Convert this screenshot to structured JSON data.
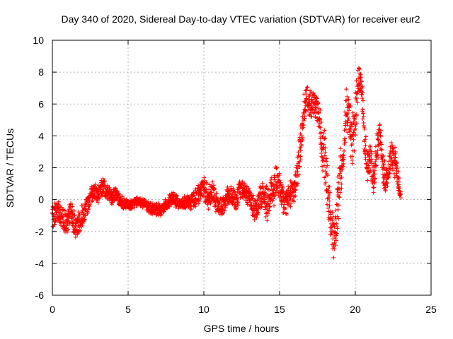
{
  "chart_data": {
    "type": "scatter",
    "title": "Day 340 of 2020, Sidereal Day-to-day VTEC variation (SDTVAR) for receiver eur2",
    "xlabel": "GPS time / hours",
    "ylabel": "SDTVAR / TECUs",
    "xlim": [
      0,
      25
    ],
    "ylim": [
      -6,
      10
    ],
    "xticks": [
      "0",
      "5",
      "10",
      "15",
      "20",
      "25"
    ],
    "yticks": [
      "-6",
      "-4",
      "-2",
      "0",
      "2",
      "4",
      "6",
      "8",
      "10"
    ],
    "grid": true,
    "marker": "+",
    "marker_color": "#ff0000",
    "series": [
      {
        "name": "SDTVAR",
        "trace": [
          [
            0.0,
            -1.2
          ],
          [
            0.3,
            -0.6
          ],
          [
            0.6,
            -1.1
          ],
          [
            0.9,
            -1.5
          ],
          [
            1.2,
            -0.8
          ],
          [
            1.5,
            -1.8
          ],
          [
            1.8,
            -1.4
          ],
          [
            2.1,
            -0.7
          ],
          [
            2.4,
            -0.2
          ],
          [
            2.7,
            0.6
          ],
          [
            3.0,
            0.3
          ],
          [
            3.3,
            0.8
          ],
          [
            3.6,
            0.5
          ],
          [
            3.9,
            0.2
          ],
          [
            4.2,
            0.4
          ],
          [
            4.5,
            -0.1
          ],
          [
            4.8,
            -0.3
          ],
          [
            5.2,
            -0.3
          ],
          [
            5.6,
            -0.1
          ],
          [
            6.0,
            -0.2
          ],
          [
            6.4,
            -0.5
          ],
          [
            6.8,
            -0.6
          ],
          [
            7.2,
            -0.7
          ],
          [
            7.6,
            -0.2
          ],
          [
            8.0,
            0.1
          ],
          [
            8.4,
            -0.3
          ],
          [
            8.8,
            -0.2
          ],
          [
            9.2,
            -0.1
          ],
          [
            9.6,
            0.3
          ],
          [
            10.0,
            0.8
          ],
          [
            10.3,
            0.1
          ],
          [
            10.6,
            0.6
          ],
          [
            10.9,
            -0.4
          ],
          [
            11.2,
            -0.5
          ],
          [
            11.5,
            0.2
          ],
          [
            11.8,
            0.4
          ],
          [
            12.1,
            -0.2
          ],
          [
            12.4,
            0.6
          ],
          [
            12.7,
            0.5
          ],
          [
            13.0,
            0.2
          ],
          [
            13.3,
            -0.6
          ],
          [
            13.6,
            -0.2
          ],
          [
            13.9,
            0.4
          ],
          [
            14.2,
            -0.3
          ],
          [
            14.5,
            0.6
          ],
          [
            14.8,
            1.2
          ],
          [
            15.1,
            0.3
          ],
          [
            15.4,
            -0.2
          ],
          [
            15.7,
            0.4
          ],
          [
            16.0,
            0.8
          ],
          [
            16.2,
            2.0
          ],
          [
            16.4,
            3.5
          ],
          [
            16.6,
            5.5
          ],
          [
            16.8,
            6.6
          ],
          [
            17.0,
            5.8
          ],
          [
            17.2,
            6.1
          ],
          [
            17.4,
            5.9
          ],
          [
            17.6,
            5.2
          ],
          [
            17.8,
            3.6
          ],
          [
            18.0,
            2.4
          ],
          [
            18.2,
            0.3
          ],
          [
            18.4,
            -1.5
          ],
          [
            18.6,
            -2.5
          ],
          [
            18.8,
            -0.5
          ],
          [
            19.0,
            1.5
          ],
          [
            19.2,
            3.0
          ],
          [
            19.4,
            5.8
          ],
          [
            19.6,
            5.0
          ],
          [
            19.8,
            3.5
          ],
          [
            20.0,
            5.0
          ],
          [
            20.2,
            7.8
          ],
          [
            20.4,
            7.2
          ],
          [
            20.6,
            4.0
          ],
          [
            20.8,
            2.0
          ],
          [
            21.0,
            2.5
          ],
          [
            21.2,
            1.2
          ],
          [
            21.4,
            2.8
          ],
          [
            21.6,
            4.3
          ],
          [
            21.8,
            2.2
          ],
          [
            22.0,
            1.0
          ],
          [
            22.2,
            2.0
          ],
          [
            22.4,
            3.0
          ],
          [
            22.6,
            2.4
          ],
          [
            22.8,
            1.5
          ],
          [
            23.0,
            0.2
          ]
        ],
        "spread": [
          1.2,
          1.2,
          1.2,
          1.3,
          1.3,
          1.2,
          1.2,
          1.1,
          1.0,
          1.0,
          0.9,
          0.9,
          0.8,
          0.8,
          0.7,
          0.6,
          0.6,
          0.5,
          0.5,
          0.5,
          0.6,
          0.6,
          0.6,
          0.7,
          0.7,
          0.6,
          0.7,
          0.8,
          1.0,
          1.3,
          1.2,
          1.2,
          1.0,
          1.0,
          0.9,
          1.0,
          1.0,
          1.0,
          1.0,
          1.0,
          1.3,
          1.3,
          1.5,
          2.0,
          2.2,
          2.0,
          1.6,
          1.5,
          1.5,
          1.5,
          1.8,
          2.0,
          1.8,
          1.0,
          1.5,
          1.5,
          1.6,
          1.4,
          2.5,
          3.0,
          2.5,
          2.5,
          2.3,
          2.6,
          2.5,
          2.5,
          2.2,
          2.5,
          2.5,
          2.5,
          1.4,
          1.2,
          2.0,
          1.6,
          1.6,
          1.6,
          2.0,
          1.4,
          1.5,
          1.5,
          1.6,
          1.6,
          1.5,
          1.5,
          0.4
        ]
      }
    ]
  }
}
